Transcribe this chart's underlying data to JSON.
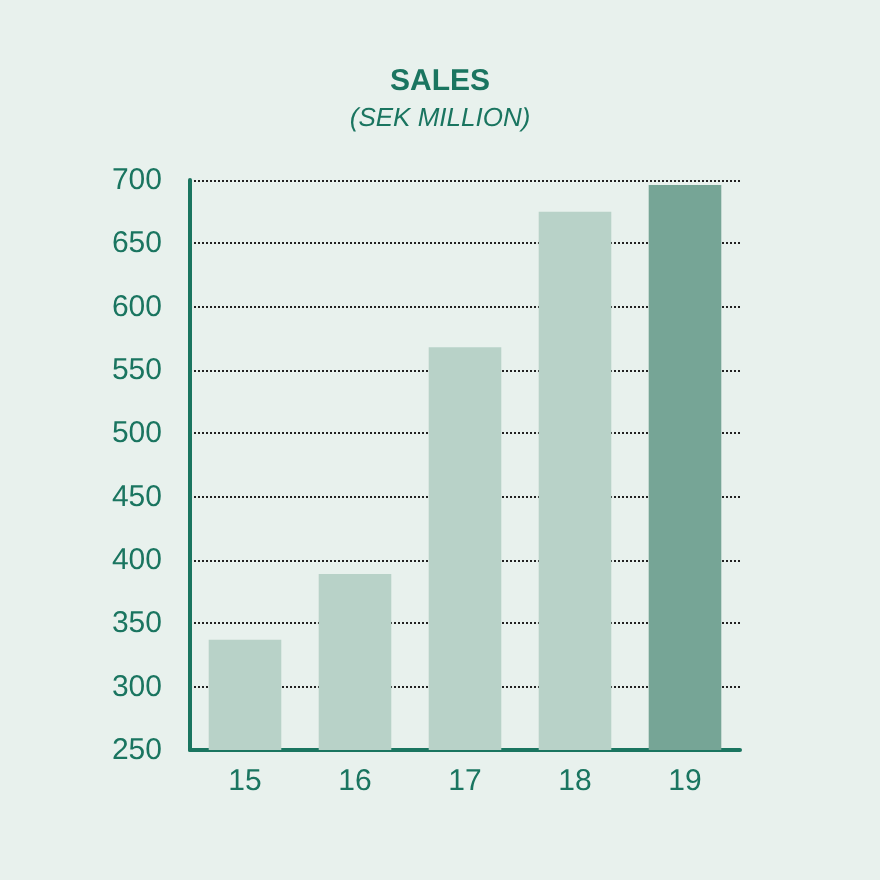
{
  "chart_data": {
    "type": "bar",
    "title": "SALES",
    "subtitle": "(SEK MILLION)",
    "categories": [
      "15",
      "16",
      "17",
      "18",
      "19"
    ],
    "values": [
      337,
      389,
      568,
      675,
      696
    ],
    "colors": [
      "#b8d2c8",
      "#b8d2c8",
      "#b8d2c8",
      "#b8d2c8",
      "#76a596"
    ],
    "ylim": [
      250,
      700
    ],
    "yticks": [
      250,
      300,
      350,
      400,
      450,
      500,
      550,
      600,
      650,
      700
    ],
    "grid": "y"
  }
}
